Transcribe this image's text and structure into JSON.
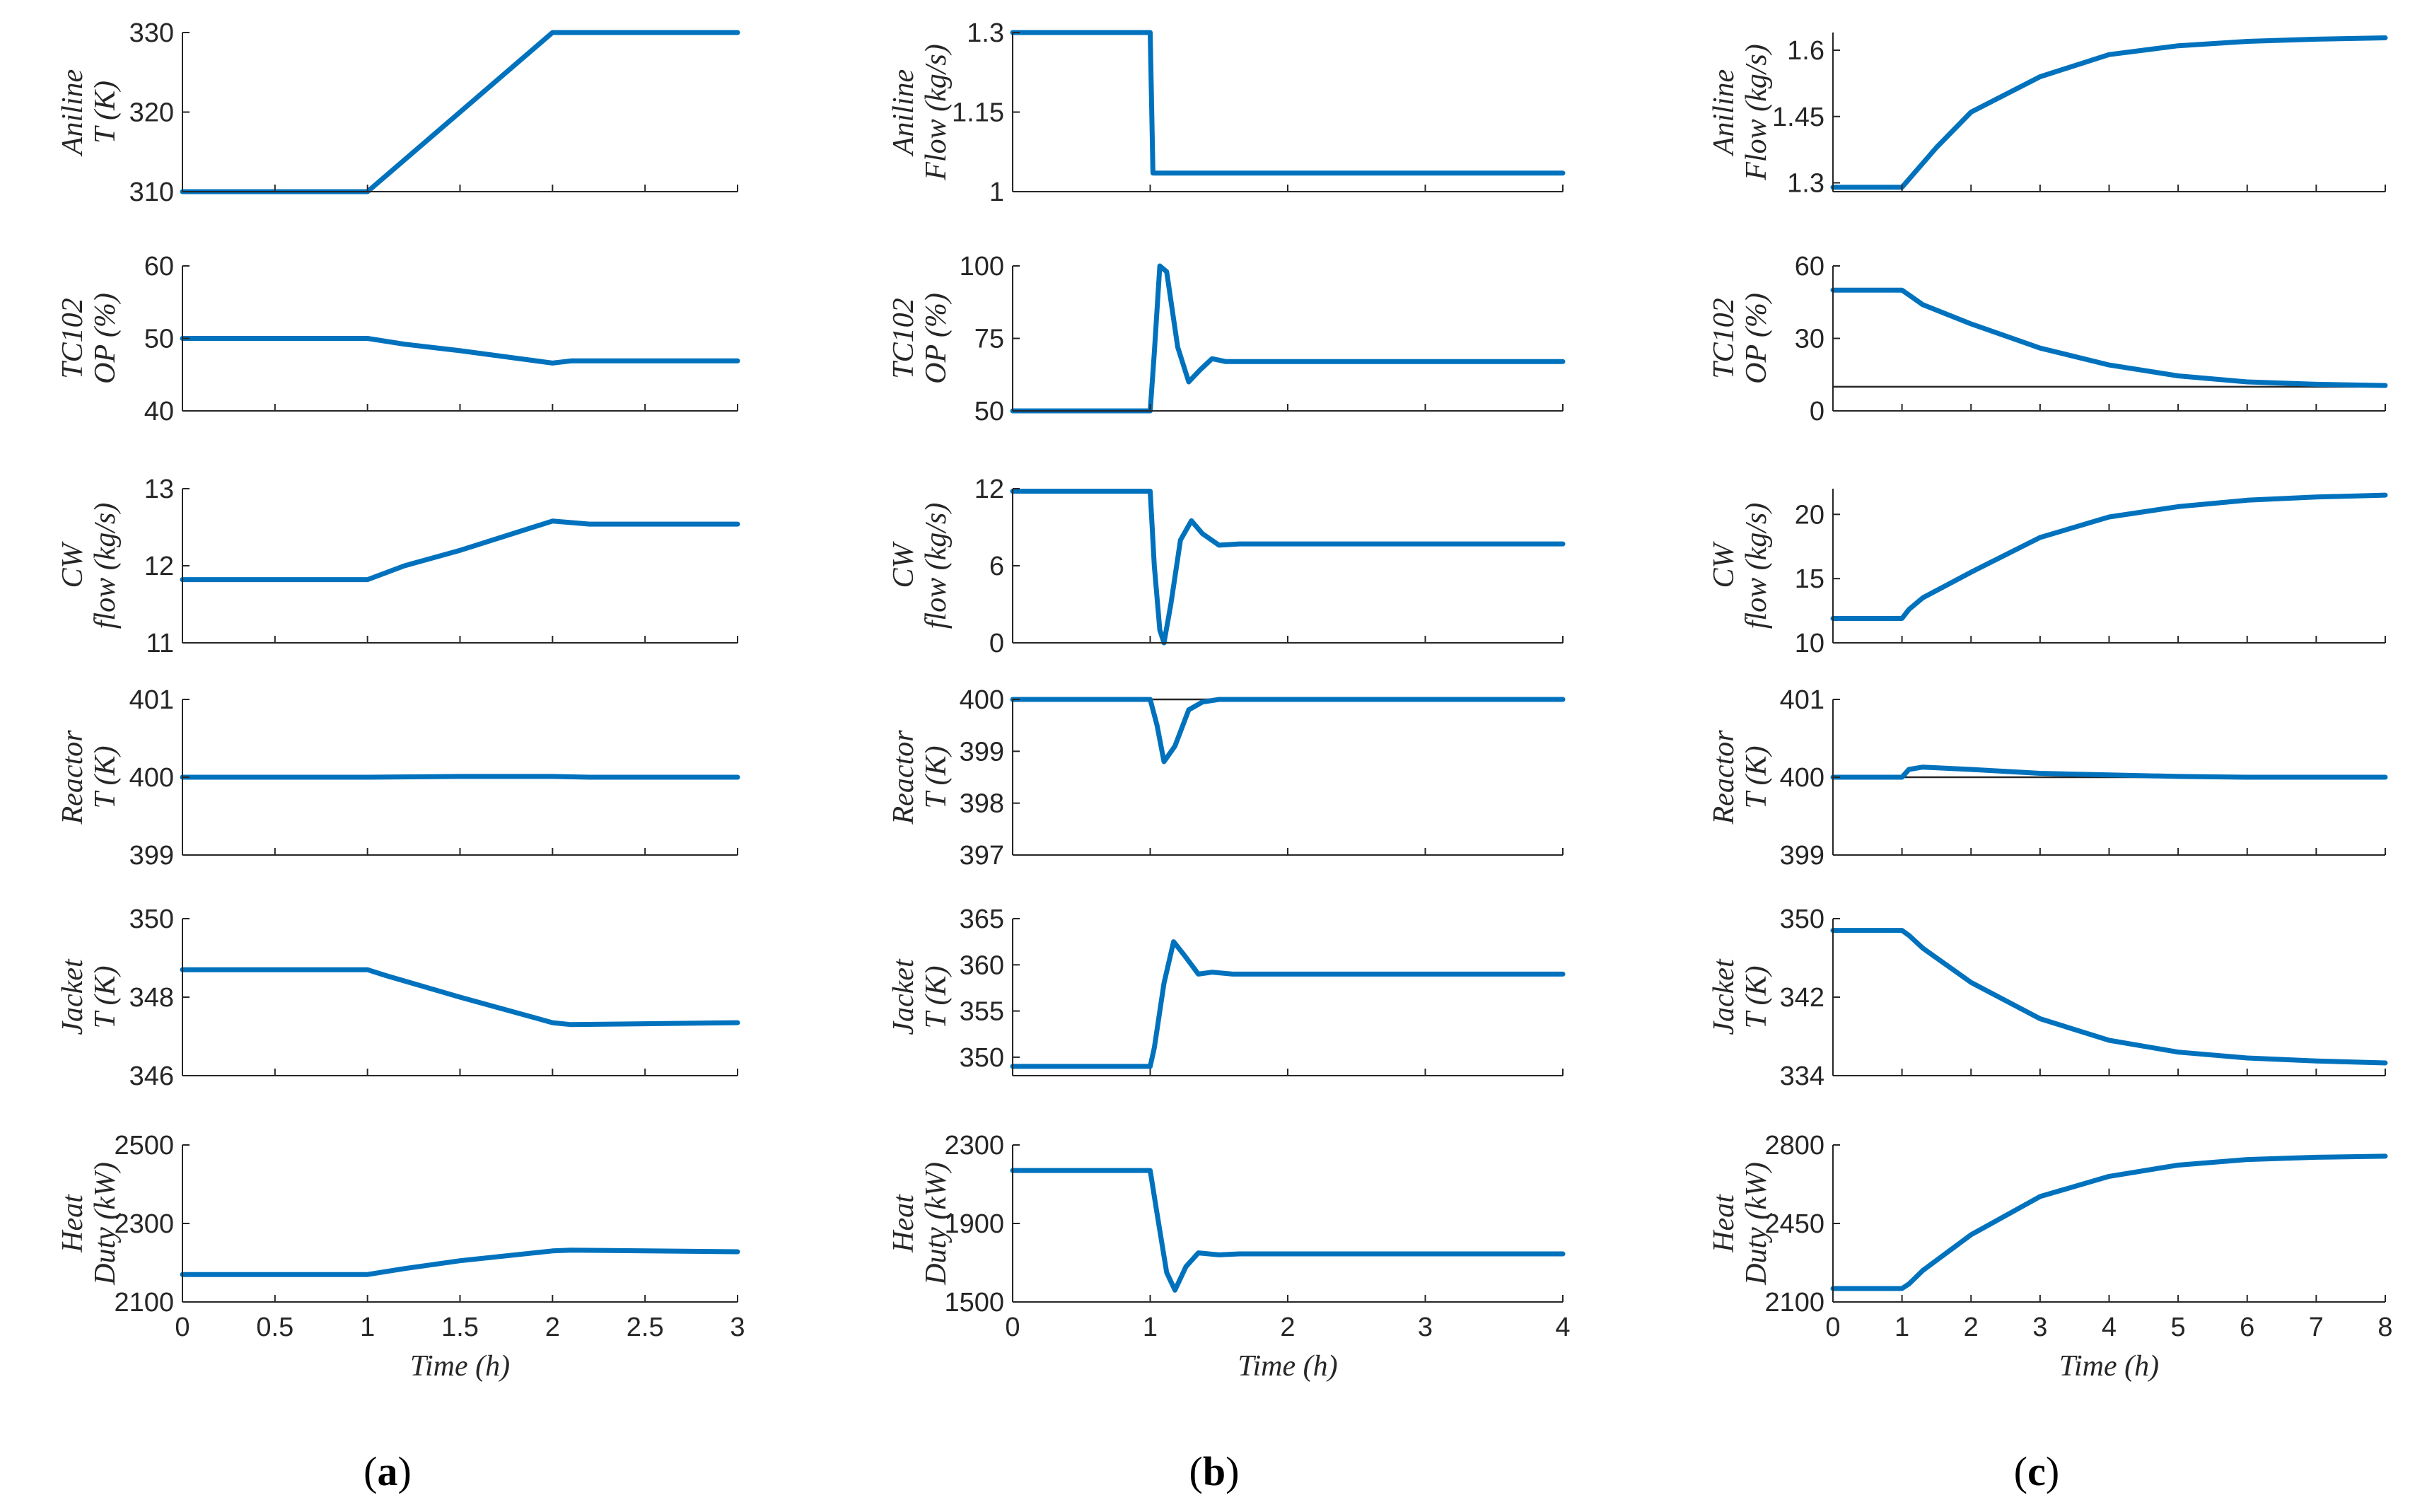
{
  "colors": {
    "series": "#0072BD",
    "axis": "#262626",
    "reference": "#262626"
  },
  "chart_data": [
    {
      "type": "line",
      "panel": "(a)",
      "panel_letter": "a",
      "xlabel": "Time (h)",
      "xlim": [
        0,
        3
      ],
      "xticks": [
        "0",
        "0.5",
        "1",
        "1.5",
        "2",
        "2.5",
        "3"
      ],
      "xtick_values": [
        0,
        0.5,
        1,
        1.5,
        2,
        2.5,
        3
      ],
      "subplots": [
        {
          "ylabel": [
            "Aniline",
            "T (K)"
          ],
          "ylim": [
            310,
            330
          ],
          "yticks": [
            310,
            320,
            330
          ],
          "ytick_labels": [
            "310",
            "320",
            "330"
          ],
          "series": {
            "x": [
              0,
              1,
              2,
              3
            ],
            "y": [
              310,
              310,
              330,
              330
            ]
          }
        },
        {
          "ylabel": [
            "TC102",
            "OP (%)"
          ],
          "ylim": [
            40,
            60
          ],
          "yticks": [
            40,
            50,
            60
          ],
          "ytick_labels": [
            "40",
            "50",
            "60"
          ],
          "series": {
            "x": [
              0,
              1,
              1.2,
              1.5,
              2,
              2.1,
              3
            ],
            "y": [
              50,
              50,
              49.2,
              48.3,
              46.6,
              46.9,
              46.9
            ]
          }
        },
        {
          "ylabel": [
            "CW",
            "flow (kg/s)"
          ],
          "ylim": [
            11,
            13
          ],
          "yticks": [
            11,
            12,
            13
          ],
          "ytick_labels": [
            "11",
            "12",
            "13"
          ],
          "series": {
            "x": [
              0,
              1,
              1.2,
              1.5,
              2,
              2.2,
              3
            ],
            "y": [
              11.82,
              11.82,
              12.0,
              12.2,
              12.58,
              12.54,
              12.54
            ]
          }
        },
        {
          "ylabel": [
            "Reactor",
            "T (K)"
          ],
          "ylim": [
            399,
            401
          ],
          "yticks": [
            399,
            400,
            401
          ],
          "ytick_labels": [
            "399",
            "400",
            "401"
          ],
          "series": {
            "x": [
              0,
              1,
              1.5,
              2,
              2.2,
              3
            ],
            "y": [
              400,
              400,
              400.01,
              400.01,
              400.0,
              400
            ]
          },
          "reference": {
            "y": 400
          }
        },
        {
          "ylabel": [
            "Jacket",
            "T (K)"
          ],
          "ylim": [
            346,
            350
          ],
          "yticks": [
            346,
            348,
            350
          ],
          "ytick_labels": [
            "346",
            "348",
            "350"
          ],
          "series": {
            "x": [
              0,
              1,
              1.1,
              1.5,
              2,
              2.1,
              3
            ],
            "y": [
              348.7,
              348.7,
              348.55,
              348.0,
              347.35,
              347.3,
              347.35
            ]
          }
        },
        {
          "ylabel": [
            "Heat",
            "Duty (kW)"
          ],
          "ylim": [
            2100,
            2500
          ],
          "yticks": [
            2100,
            2300,
            2500
          ],
          "ytick_labels": [
            "2100",
            "2300",
            "2500"
          ],
          "series": {
            "x": [
              0,
              1,
              1.2,
              1.5,
              2,
              2.1,
              3
            ],
            "y": [
              2170,
              2170,
              2185,
              2205,
              2230,
              2232,
              2228
            ]
          }
        }
      ]
    },
    {
      "type": "line",
      "panel": "(b)",
      "panel_letter": "b",
      "xlabel": "Time (h)",
      "xlim": [
        0,
        4
      ],
      "xticks": [
        "0",
        "1",
        "2",
        "3",
        "4"
      ],
      "xtick_values": [
        0,
        1,
        2,
        3,
        4
      ],
      "subplots": [
        {
          "ylabel": [
            "Aniline",
            "Flow (kg/s)"
          ],
          "ylim": [
            1,
            1.3
          ],
          "yticks": [
            1,
            1.15,
            1.3
          ],
          "ytick_labels": [
            "1",
            "1.15",
            "1.3"
          ],
          "series": {
            "x": [
              0,
              1,
              1.02,
              4
            ],
            "y": [
              1.3,
              1.3,
              1.035,
              1.035
            ]
          }
        },
        {
          "ylabel": [
            "TC102",
            "OP (%)"
          ],
          "ylim": [
            50,
            100
          ],
          "yticks": [
            50,
            75,
            100
          ],
          "ytick_labels": [
            "50",
            "75",
            "100"
          ],
          "series": {
            "x": [
              0,
              1,
              1.03,
              1.07,
              1.12,
              1.2,
              1.28,
              1.36,
              1.45,
              1.55,
              1.7,
              4
            ],
            "y": [
              50,
              50,
              70,
              100,
              98,
              72,
              60,
              64,
              68,
              67,
              67,
              67
            ]
          }
        },
        {
          "ylabel": [
            "CW",
            "flow (kg/s)"
          ],
          "ylim": [
            0,
            12
          ],
          "yticks": [
            0,
            6,
            12
          ],
          "ytick_labels": [
            "0",
            "6",
            "12"
          ],
          "series": {
            "x": [
              0,
              1,
              1.03,
              1.07,
              1.1,
              1.15,
              1.22,
              1.3,
              1.38,
              1.5,
              1.65,
              4
            ],
            "y": [
              11.8,
              11.8,
              6,
              1,
              0,
              3,
              8,
              9.5,
              8.5,
              7.6,
              7.7,
              7.7
            ]
          }
        },
        {
          "ylabel": [
            "Reactor",
            "T (K)"
          ],
          "ylim": [
            397,
            400
          ],
          "yticks": [
            397,
            398,
            399,
            400
          ],
          "ytick_labels": [
            "397",
            "398",
            "399",
            "400"
          ],
          "series": {
            "x": [
              0,
              1,
              1.05,
              1.1,
              1.18,
              1.28,
              1.38,
              1.5,
              1.7,
              4
            ],
            "y": [
              400,
              400,
              399.5,
              398.8,
              399.1,
              399.8,
              399.95,
              400.0,
              400.0,
              400
            ]
          },
          "reference": {
            "y": 400
          }
        },
        {
          "ylabel": [
            "Jacket",
            "T (K)"
          ],
          "ylim": [
            348,
            365
          ],
          "yticks": [
            350,
            355,
            360,
            365
          ],
          "ytick_labels": [
            "350",
            "355",
            "360",
            "365"
          ],
          "series": {
            "x": [
              0,
              1,
              1.03,
              1.1,
              1.17,
              1.25,
              1.35,
              1.45,
              1.6,
              4
            ],
            "y": [
              349,
              349,
              351,
              358,
              362.5,
              361,
              359,
              359.2,
              359,
              359
            ]
          }
        },
        {
          "ylabel": [
            "Heat",
            "Duty (kW)"
          ],
          "ylim": [
            1500,
            2300
          ],
          "yticks": [
            1500,
            1900,
            2300
          ],
          "ytick_labels": [
            "1500",
            "1900",
            "2300"
          ],
          "series": {
            "x": [
              0,
              1,
              1.05,
              1.12,
              1.18,
              1.26,
              1.35,
              1.5,
              1.65,
              4
            ],
            "y": [
              2170,
              2170,
              1950,
              1650,
              1560,
              1680,
              1750,
              1740,
              1745,
              1745
            ]
          }
        }
      ]
    },
    {
      "type": "line",
      "panel": "(c)",
      "panel_letter": "c",
      "xlabel": "Time (h)",
      "xlim": [
        0,
        8
      ],
      "xticks": [
        "0",
        "1",
        "2",
        "3",
        "4",
        "5",
        "6",
        "7",
        "8"
      ],
      "xtick_values": [
        0,
        1,
        2,
        3,
        4,
        5,
        6,
        7,
        8
      ],
      "subplots": [
        {
          "ylabel": [
            "Aniline",
            "Flow (kg/s)"
          ],
          "ylim": [
            1.28,
            1.64
          ],
          "yticks": [
            1.3,
            1.45,
            1.6
          ],
          "ytick_labels": [
            "1.3",
            "1.45",
            "1.6"
          ],
          "series": {
            "x": [
              0,
              1,
              1.5,
              2,
              3,
              4,
              5,
              6,
              7,
              8
            ],
            "y": [
              1.29,
              1.29,
              1.38,
              1.46,
              1.54,
              1.59,
              1.61,
              1.62,
              1.625,
              1.628
            ]
          }
        },
        {
          "ylabel": [
            "TC102",
            "OP (%)"
          ],
          "ylim": [
            0,
            60
          ],
          "yticks": [
            0,
            30,
            60
          ],
          "ytick_labels": [
            "0",
            "30",
            "60"
          ],
          "series": {
            "x": [
              0,
              1,
              1.1,
              1.3,
              2,
              3,
              4,
              5,
              6,
              7,
              8
            ],
            "y": [
              50,
              50,
              48,
              44,
              36,
              26,
              19,
              14.5,
              12,
              11,
              10.5
            ]
          },
          "reference": {
            "y": 10
          }
        },
        {
          "ylabel": [
            "CW",
            "flow (kg/s)"
          ],
          "ylim": [
            10,
            22
          ],
          "yticks": [
            10,
            15,
            20
          ],
          "ytick_labels": [
            "10",
            "15",
            "20"
          ],
          "series": {
            "x": [
              0,
              1,
              1.1,
              1.3,
              2,
              3,
              4,
              5,
              6,
              7,
              8
            ],
            "y": [
              11.9,
              11.9,
              12.6,
              13.5,
              15.5,
              18.2,
              19.8,
              20.6,
              21.1,
              21.35,
              21.5
            ]
          }
        },
        {
          "ylabel": [
            "Reactor",
            "T (K)"
          ],
          "ylim": [
            399,
            401
          ],
          "yticks": [
            399,
            400,
            401
          ],
          "ytick_labels": [
            "399",
            "400",
            "401"
          ],
          "series": {
            "x": [
              0,
              1,
              1.1,
              1.3,
              2,
              3,
              4,
              5,
              6,
              8
            ],
            "y": [
              400,
              400,
              400.1,
              400.13,
              400.1,
              400.05,
              400.03,
              400.01,
              400.0,
              400
            ]
          },
          "reference": {
            "y": 400
          }
        },
        {
          "ylabel": [
            "Jacket",
            "T (K)"
          ],
          "ylim": [
            334,
            350
          ],
          "yticks": [
            334,
            342,
            350
          ],
          "ytick_labels": [
            "334",
            "342",
            "350"
          ],
          "series": {
            "x": [
              0,
              1,
              1.1,
              1.3,
              2,
              3,
              4,
              5,
              6,
              7,
              8
            ],
            "y": [
              348.8,
              348.8,
              348.3,
              347,
              343.5,
              339.8,
              337.6,
              336.4,
              335.8,
              335.5,
              335.3
            ]
          }
        },
        {
          "ylabel": [
            "Heat",
            "Duty (kW)"
          ],
          "ylim": [
            2100,
            2800
          ],
          "yticks": [
            2100,
            2450,
            2800
          ],
          "ytick_labels": [
            "2100",
            "2450",
            "2800"
          ],
          "series": {
            "x": [
              0,
              1,
              1.1,
              1.3,
              2,
              3,
              4,
              5,
              6,
              7,
              8
            ],
            "y": [
              2160,
              2160,
              2180,
              2240,
              2400,
              2570,
              2660,
              2710,
              2735,
              2745,
              2750
            ]
          }
        }
      ]
    }
  ]
}
